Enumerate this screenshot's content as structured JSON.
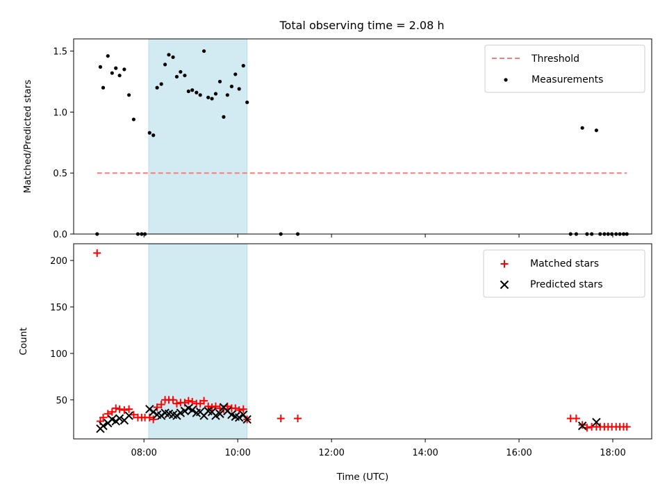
{
  "chart_data": [
    {
      "type": "scatter",
      "title": "Total observing time = 2.08 h",
      "xlabel": "",
      "ylabel": "Matched/Predicted stars",
      "ylim": [
        0,
        1.6
      ],
      "yticks": [
        "0.0",
        "0.5",
        "1.0",
        "1.5"
      ],
      "xlim_hours": [
        6.5,
        18.83
      ],
      "highlight_span_hours": [
        8.1,
        10.2
      ],
      "highlight_color": "#add8e6",
      "legend_position": "top-right",
      "threshold": {
        "name": "Threshold",
        "value": 0.5,
        "x_range_hours": [
          7.0,
          18.3
        ],
        "color": "#f08080",
        "style": "dashed"
      },
      "series": [
        {
          "name": "Measurements",
          "color": "#000000",
          "marker": "dot",
          "points": [
            [
              7.0,
              0.0
            ],
            [
              7.07,
              1.37
            ],
            [
              7.13,
              1.2
            ],
            [
              7.23,
              1.46
            ],
            [
              7.32,
              1.32
            ],
            [
              7.4,
              1.36
            ],
            [
              7.48,
              1.3
            ],
            [
              7.58,
              1.35
            ],
            [
              7.68,
              1.14
            ],
            [
              7.78,
              0.94
            ],
            [
              7.87,
              0.0
            ],
            [
              7.95,
              0.0
            ],
            [
              8.02,
              0.0
            ],
            [
              8.12,
              0.83
            ],
            [
              8.2,
              0.81
            ],
            [
              8.28,
              1.2
            ],
            [
              8.37,
              1.23
            ],
            [
              8.45,
              1.39
            ],
            [
              8.53,
              1.47
            ],
            [
              8.62,
              1.45
            ],
            [
              8.7,
              1.29
            ],
            [
              8.78,
              1.33
            ],
            [
              8.87,
              1.3
            ],
            [
              8.95,
              1.17
            ],
            [
              9.03,
              1.18
            ],
            [
              9.12,
              1.16
            ],
            [
              9.2,
              1.14
            ],
            [
              9.28,
              1.5
            ],
            [
              9.37,
              1.12
            ],
            [
              9.45,
              1.11
            ],
            [
              9.53,
              1.15
            ],
            [
              9.62,
              1.25
            ],
            [
              9.7,
              0.96
            ],
            [
              9.78,
              1.14
            ],
            [
              9.87,
              1.21
            ],
            [
              9.95,
              1.31
            ],
            [
              10.03,
              1.19
            ],
            [
              10.12,
              1.38
            ],
            [
              10.2,
              1.08
            ],
            [
              10.92,
              0.0
            ],
            [
              11.28,
              0.0
            ],
            [
              17.1,
              0.0
            ],
            [
              17.22,
              0.0
            ],
            [
              17.35,
              0.87
            ],
            [
              17.45,
              0.0
            ],
            [
              17.55,
              0.0
            ],
            [
              17.65,
              0.85
            ],
            [
              17.73,
              0.0
            ],
            [
              17.82,
              0.0
            ],
            [
              17.9,
              0.0
            ],
            [
              17.98,
              0.0
            ],
            [
              18.07,
              0.0
            ],
            [
              18.15,
              0.0
            ],
            [
              18.23,
              0.0
            ],
            [
              18.3,
              0.0
            ]
          ]
        }
      ]
    },
    {
      "type": "scatter",
      "title": "",
      "xlabel": "Time (UTC)",
      "ylabel": "Count",
      "ylim": [
        8,
        218
      ],
      "yticks": [
        "50",
        "100",
        "150",
        "200"
      ],
      "xlim_hours": [
        6.5,
        18.83
      ],
      "xticks": [
        "08:00",
        "10:00",
        "12:00",
        "14:00",
        "16:00",
        "18:00"
      ],
      "highlight_span_hours": [
        8.1,
        10.2
      ],
      "highlight_color": "#add8e6",
      "legend_position": "top-right",
      "series": [
        {
          "name": "Matched stars",
          "color": "#ff0000",
          "marker": "plus",
          "points": [
            [
              7.0,
              208
            ],
            [
              7.07,
              27
            ],
            [
              7.13,
              31
            ],
            [
              7.23,
              35
            ],
            [
              7.32,
              37
            ],
            [
              7.4,
              41
            ],
            [
              7.48,
              40
            ],
            [
              7.58,
              39
            ],
            [
              7.68,
              40
            ],
            [
              7.78,
              34
            ],
            [
              7.87,
              31
            ],
            [
              7.95,
              31
            ],
            [
              8.02,
              31
            ],
            [
              8.12,
              31
            ],
            [
              8.2,
              29
            ],
            [
              8.28,
              42
            ],
            [
              8.37,
              45
            ],
            [
              8.45,
              50
            ],
            [
              8.53,
              50
            ],
            [
              8.62,
              50
            ],
            [
              8.7,
              46
            ],
            [
              8.78,
              47
            ],
            [
              8.87,
              47
            ],
            [
              8.95,
              49
            ],
            [
              9.03,
              48
            ],
            [
              9.12,
              46
            ],
            [
              9.2,
              46
            ],
            [
              9.28,
              49
            ],
            [
              9.37,
              43
            ],
            [
              9.45,
              42
            ],
            [
              9.53,
              43
            ],
            [
              9.62,
              41
            ],
            [
              9.7,
              40
            ],
            [
              9.78,
              43
            ],
            [
              9.87,
              41
            ],
            [
              9.95,
              41
            ],
            [
              10.03,
              39
            ],
            [
              10.12,
              40
            ],
            [
              10.2,
              29
            ],
            [
              10.92,
              30
            ],
            [
              11.28,
              30
            ],
            [
              17.1,
              30
            ],
            [
              17.22,
              30
            ],
            [
              17.35,
              23
            ],
            [
              17.45,
              20
            ],
            [
              17.55,
              21
            ],
            [
              17.65,
              21
            ],
            [
              17.73,
              21
            ],
            [
              17.82,
              21
            ],
            [
              17.9,
              21
            ],
            [
              17.98,
              21
            ],
            [
              18.07,
              21
            ],
            [
              18.15,
              21
            ],
            [
              18.23,
              21
            ],
            [
              18.3,
              21
            ]
          ]
        },
        {
          "name": "Predicted stars",
          "color": "#000000",
          "marker": "x",
          "points": [
            [
              7.07,
              19
            ],
            [
              7.13,
              22
            ],
            [
              7.23,
              25
            ],
            [
              7.32,
              29
            ],
            [
              7.4,
              27
            ],
            [
              7.48,
              30
            ],
            [
              7.58,
              28
            ],
            [
              7.68,
              33
            ],
            [
              8.12,
              40
            ],
            [
              8.2,
              37
            ],
            [
              8.28,
              34
            ],
            [
              8.37,
              33
            ],
            [
              8.45,
              36
            ],
            [
              8.53,
              35
            ],
            [
              8.62,
              34
            ],
            [
              8.7,
              33
            ],
            [
              8.78,
              36
            ],
            [
              8.87,
              38
            ],
            [
              8.95,
              41
            ],
            [
              9.03,
              39
            ],
            [
              9.12,
              36
            ],
            [
              9.2,
              37
            ],
            [
              9.28,
              33
            ],
            [
              9.37,
              38
            ],
            [
              9.45,
              37
            ],
            [
              9.53,
              33
            ],
            [
              9.62,
              35
            ],
            [
              9.7,
              42
            ],
            [
              9.78,
              38
            ],
            [
              9.87,
              34
            ],
            [
              9.95,
              32
            ],
            [
              10.03,
              31
            ],
            [
              10.12,
              34
            ],
            [
              10.2,
              29
            ],
            [
              17.35,
              22
            ],
            [
              17.65,
              26
            ]
          ]
        }
      ]
    }
  ]
}
